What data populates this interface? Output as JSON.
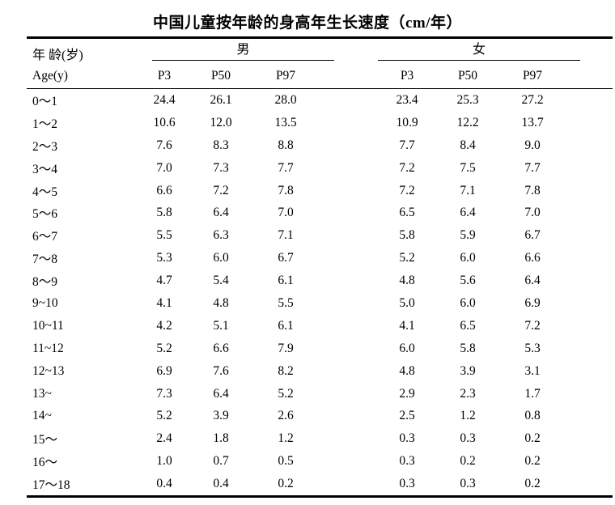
{
  "page": {
    "title": "中国儿童按年龄的身高年生长速度（cm/年）"
  },
  "colors": {
    "background": "#ffffff",
    "text": "#000000",
    "rule": "#000000"
  },
  "table": {
    "header": {
      "age_label_zh": "年 龄(岁)",
      "age_label_en": "Age(y)",
      "male_group_label": "男",
      "female_group_label": "女",
      "male_percentiles": [
        "P3",
        "P50",
        "P97"
      ],
      "female_percentiles": [
        "P3",
        "P50",
        "P97"
      ]
    },
    "rows": [
      {
        "age": "0～1",
        "male": [
          "24.4",
          "26.1",
          "28.0"
        ],
        "female": [
          "23.4",
          "25.3",
          "27.2"
        ]
      },
      {
        "age": "1～2",
        "male": [
          "10.6",
          "12.0",
          "13.5"
        ],
        "female": [
          "10.9",
          "12.2",
          "13.7"
        ]
      },
      {
        "age": "2～3",
        "male": [
          "7.6",
          "8.3",
          "8.8"
        ],
        "female": [
          "7.7",
          "8.4",
          "9.0"
        ]
      },
      {
        "age": "3～4",
        "male": [
          "7.0",
          "7.3",
          "7.7"
        ],
        "female": [
          "7.2",
          "7.5",
          "7.7"
        ]
      },
      {
        "age": "4～5",
        "male": [
          "6.6",
          "7.2",
          "7.8"
        ],
        "female": [
          "7.2",
          "7.1",
          "7.8"
        ]
      },
      {
        "age": "5～6",
        "male": [
          "5.8",
          "6.4",
          "7.0"
        ],
        "female": [
          "6.5",
          "6.4",
          "7.0"
        ]
      },
      {
        "age": "6～7",
        "male": [
          "5.5",
          "6.3",
          "7.1"
        ],
        "female": [
          "5.8",
          "5.9",
          "6.7"
        ]
      },
      {
        "age": "7～8",
        "male": [
          "5.3",
          "6.0",
          "6.7"
        ],
        "female": [
          "5.2",
          "6.0",
          "6.6"
        ]
      },
      {
        "age": "8～9",
        "male": [
          "4.7",
          "5.4",
          "6.1"
        ],
        "female": [
          "4.8",
          "5.6",
          "6.4"
        ]
      },
      {
        "age": "9~10",
        "male": [
          "4.1",
          "4.8",
          "5.5"
        ],
        "female": [
          "5.0",
          "6.0",
          "6.9"
        ]
      },
      {
        "age": "10~11",
        "male": [
          "4.2",
          "5.1",
          "6.1"
        ],
        "female": [
          "4.1",
          "6.5",
          "7.2"
        ]
      },
      {
        "age": "11~12",
        "male": [
          "5.2",
          "6.6",
          "7.9"
        ],
        "female": [
          "6.0",
          "5.8",
          "5.3"
        ]
      },
      {
        "age": "12~13",
        "male": [
          "6.9",
          "7.6",
          "8.2"
        ],
        "female": [
          "4.8",
          "3.9",
          "3.1"
        ]
      },
      {
        "age": "13~",
        "male": [
          "7.3",
          "6.4",
          "5.2"
        ],
        "female": [
          "2.9",
          "2.3",
          "1.7"
        ]
      },
      {
        "age": "14~",
        "male": [
          "5.2",
          "3.9",
          "2.6"
        ],
        "female": [
          "2.5",
          "1.2",
          "0.8"
        ]
      },
      {
        "age": "15～",
        "male": [
          "2.4",
          "1.8",
          "1.2"
        ],
        "female": [
          "0.3",
          "0.3",
          "0.2"
        ]
      },
      {
        "age": "16～",
        "male": [
          "1.0",
          "0.7",
          "0.5"
        ],
        "female": [
          "0.3",
          "0.2",
          "0.2"
        ]
      },
      {
        "age": "17～18",
        "male": [
          "0.4",
          "0.4",
          "0.2"
        ],
        "female": [
          "0.3",
          "0.3",
          "0.2"
        ]
      }
    ]
  },
  "chart_data": {
    "type": "table",
    "title": "中国儿童按年龄的身高年生长速度（cm/年）",
    "columns": [
      "年龄(岁) Age(y)",
      "男 P3",
      "男 P50",
      "男 P97",
      "女 P3",
      "女 P50",
      "女 P97"
    ],
    "rows": [
      [
        "0～1",
        24.4,
        26.1,
        28.0,
        23.4,
        25.3,
        27.2
      ],
      [
        "1～2",
        10.6,
        12.0,
        13.5,
        10.9,
        12.2,
        13.7
      ],
      [
        "2～3",
        7.6,
        8.3,
        8.8,
        7.7,
        8.4,
        9.0
      ],
      [
        "3～4",
        7.0,
        7.3,
        7.7,
        7.2,
        7.5,
        7.7
      ],
      [
        "4～5",
        6.6,
        7.2,
        7.8,
        7.2,
        7.1,
        7.8
      ],
      [
        "5～6",
        5.8,
        6.4,
        7.0,
        6.5,
        6.4,
        7.0
      ],
      [
        "6～7",
        5.5,
        6.3,
        7.1,
        5.8,
        5.9,
        6.7
      ],
      [
        "7～8",
        5.3,
        6.0,
        6.7,
        5.2,
        6.0,
        6.6
      ],
      [
        "8～9",
        4.7,
        5.4,
        6.1,
        4.8,
        5.6,
        6.4
      ],
      [
        "9~10",
        4.1,
        4.8,
        5.5,
        5.0,
        6.0,
        6.9
      ],
      [
        "10~11",
        4.2,
        5.1,
        6.1,
        4.1,
        6.5,
        7.2
      ],
      [
        "11~12",
        5.2,
        6.6,
        7.9,
        6.0,
        5.8,
        5.3
      ],
      [
        "12~13",
        6.9,
        7.6,
        8.2,
        4.8,
        3.9,
        3.1
      ],
      [
        "13~",
        7.3,
        6.4,
        5.2,
        2.9,
        2.3,
        1.7
      ],
      [
        "14~",
        5.2,
        3.9,
        2.6,
        2.5,
        1.2,
        0.8
      ],
      [
        "15～",
        2.4,
        1.8,
        1.2,
        0.3,
        0.3,
        0.2
      ],
      [
        "16～",
        1.0,
        0.7,
        0.5,
        0.3,
        0.2,
        0.2
      ],
      [
        "17～18",
        0.4,
        0.4,
        0.2,
        0.3,
        0.3,
        0.2
      ]
    ]
  }
}
